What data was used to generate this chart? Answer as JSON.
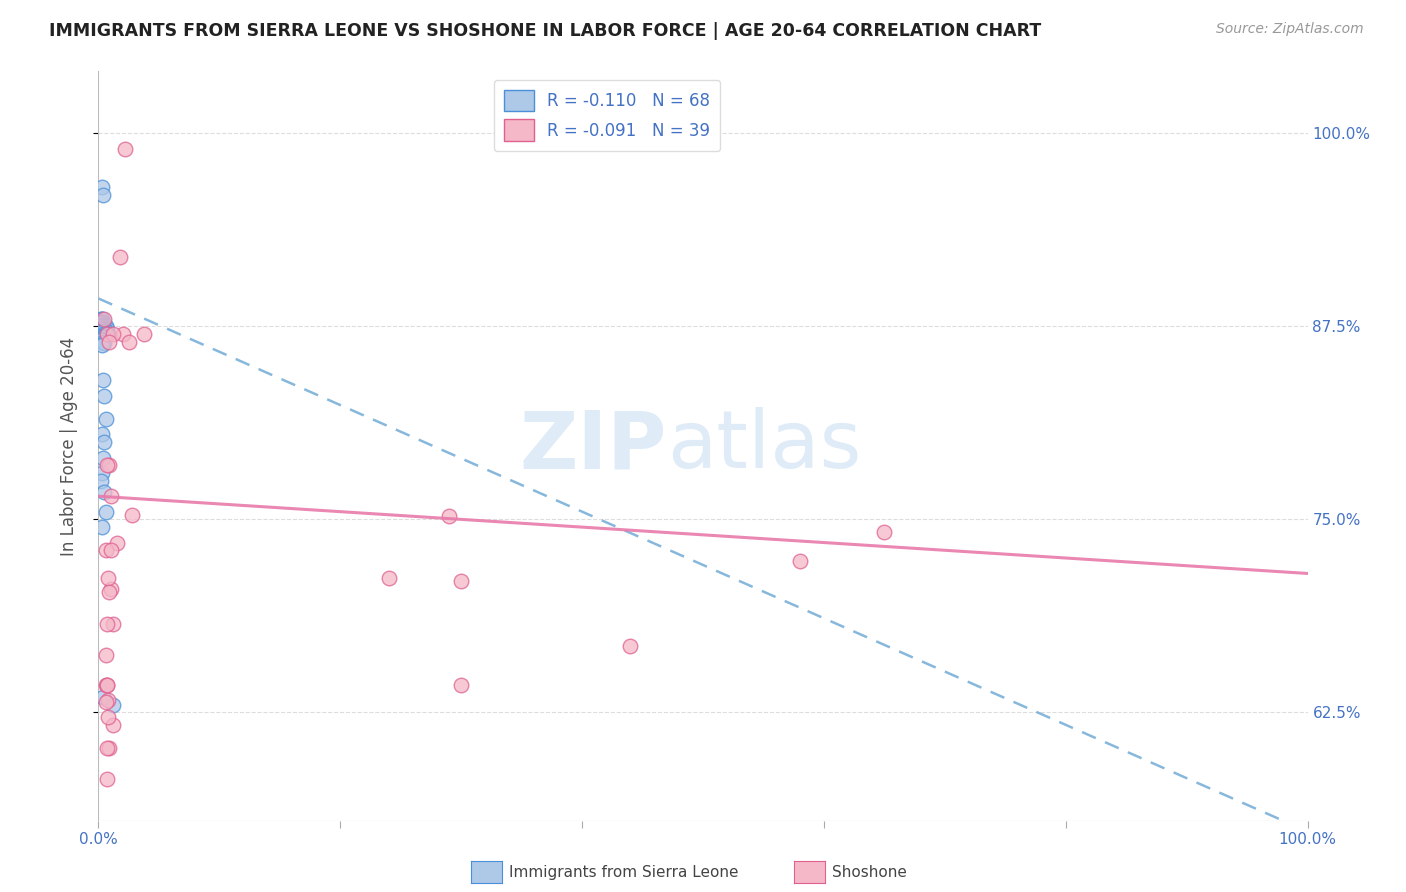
{
  "title": "IMMIGRANTS FROM SIERRA LEONE VS SHOSHONE IN LABOR FORCE | AGE 20-64 CORRELATION CHART",
  "source": "Source: ZipAtlas.com",
  "ylabel": "In Labor Force | Age 20-64",
  "xlim": [
    0.0,
    1.0
  ],
  "ylim": [
    0.555,
    1.04
  ],
  "x_ticks": [
    0.0,
    0.2,
    0.4,
    0.6,
    0.8,
    1.0
  ],
  "x_tick_labels": [
    "0.0%",
    "",
    "",
    "",
    "",
    "100.0%"
  ],
  "y_ticks": [
    0.625,
    0.75,
    0.875,
    1.0
  ],
  "y_tick_labels": [
    "62.5%",
    "75.0%",
    "87.5%",
    "100.0%"
  ],
  "watermark_zip": "ZIP",
  "watermark_atlas": "atlas",
  "legend_r1": "R = ",
  "legend_v1": "-0.110",
  "legend_n1": "N = 68",
  "legend_r2": "R = ",
  "legend_v2": "-0.091",
  "legend_n2": "N = 39",
  "blue_color": "#aec8e8",
  "blue_edge_color": "#4a90d9",
  "pink_color": "#f4b8c8",
  "pink_edge_color": "#e06090",
  "blue_line_color": "#7ab0d8",
  "pink_line_color": "#e87aaa",
  "grid_color": "#dddddd",
  "axis_label_color": "#4472c4",
  "blue_scatter_x": [
    0.003,
    0.004,
    0.003,
    0.002,
    0.003,
    0.004,
    0.003,
    0.003,
    0.002,
    0.001,
    0.004,
    0.005,
    0.003,
    0.002,
    0.003,
    0.004,
    0.002,
    0.003,
    0.001,
    0.002,
    0.005,
    0.006,
    0.003,
    0.004,
    0.002,
    0.003,
    0.005,
    0.002,
    0.004,
    0.003,
    0.007,
    0.005,
    0.003,
    0.002,
    0.004,
    0.006,
    0.003,
    0.002,
    0.004,
    0.005,
    0.003,
    0.008,
    0.006,
    0.004,
    0.003,
    0.005,
    0.002,
    0.004,
    0.003,
    0.001,
    0.002,
    0.003,
    0.004,
    0.005,
    0.003,
    0.004,
    0.005,
    0.006,
    0.003,
    0.005,
    0.004,
    0.003,
    0.002,
    0.005,
    0.006,
    0.003,
    0.004,
    0.012
  ],
  "blue_scatter_y": [
    0.965,
    0.96,
    0.88,
    0.88,
    0.88,
    0.878,
    0.878,
    0.877,
    0.877,
    0.876,
    0.876,
    0.876,
    0.875,
    0.875,
    0.875,
    0.875,
    0.875,
    0.875,
    0.875,
    0.875,
    0.875,
    0.875,
    0.875,
    0.875,
    0.875,
    0.875,
    0.874,
    0.874,
    0.874,
    0.874,
    0.873,
    0.873,
    0.873,
    0.873,
    0.872,
    0.872,
    0.872,
    0.872,
    0.871,
    0.871,
    0.871,
    0.87,
    0.87,
    0.87,
    0.869,
    0.869,
    0.869,
    0.868,
    0.868,
    0.867,
    0.867,
    0.866,
    0.865,
    0.864,
    0.863,
    0.84,
    0.83,
    0.815,
    0.805,
    0.8,
    0.79,
    0.78,
    0.775,
    0.768,
    0.755,
    0.745,
    0.635,
    0.63
  ],
  "pink_scatter_x": [
    0.022,
    0.018,
    0.005,
    0.02,
    0.007,
    0.012,
    0.009,
    0.038,
    0.025,
    0.009,
    0.007,
    0.01,
    0.028,
    0.015,
    0.006,
    0.01,
    0.29,
    0.01,
    0.3,
    0.012,
    0.006,
    0.58,
    0.65,
    0.006,
    0.007,
    0.008,
    0.44,
    0.009,
    0.007,
    0.012,
    0.008,
    0.007,
    0.3,
    0.007,
    0.006,
    0.24,
    0.007,
    0.008,
    0.009
  ],
  "pink_scatter_y": [
    0.99,
    0.92,
    0.88,
    0.87,
    0.87,
    0.87,
    0.865,
    0.87,
    0.865,
    0.785,
    0.785,
    0.765,
    0.753,
    0.735,
    0.73,
    0.73,
    0.752,
    0.705,
    0.71,
    0.682,
    0.662,
    0.723,
    0.742,
    0.643,
    0.643,
    0.633,
    0.668,
    0.602,
    0.582,
    0.617,
    0.622,
    0.602,
    0.643,
    0.643,
    0.632,
    0.712,
    0.682,
    0.712,
    0.703
  ],
  "blue_trend_y_start": 0.893,
  "blue_trend_y_end": 0.548,
  "pink_trend_y_start": 0.765,
  "pink_trend_y_end": 0.715
}
